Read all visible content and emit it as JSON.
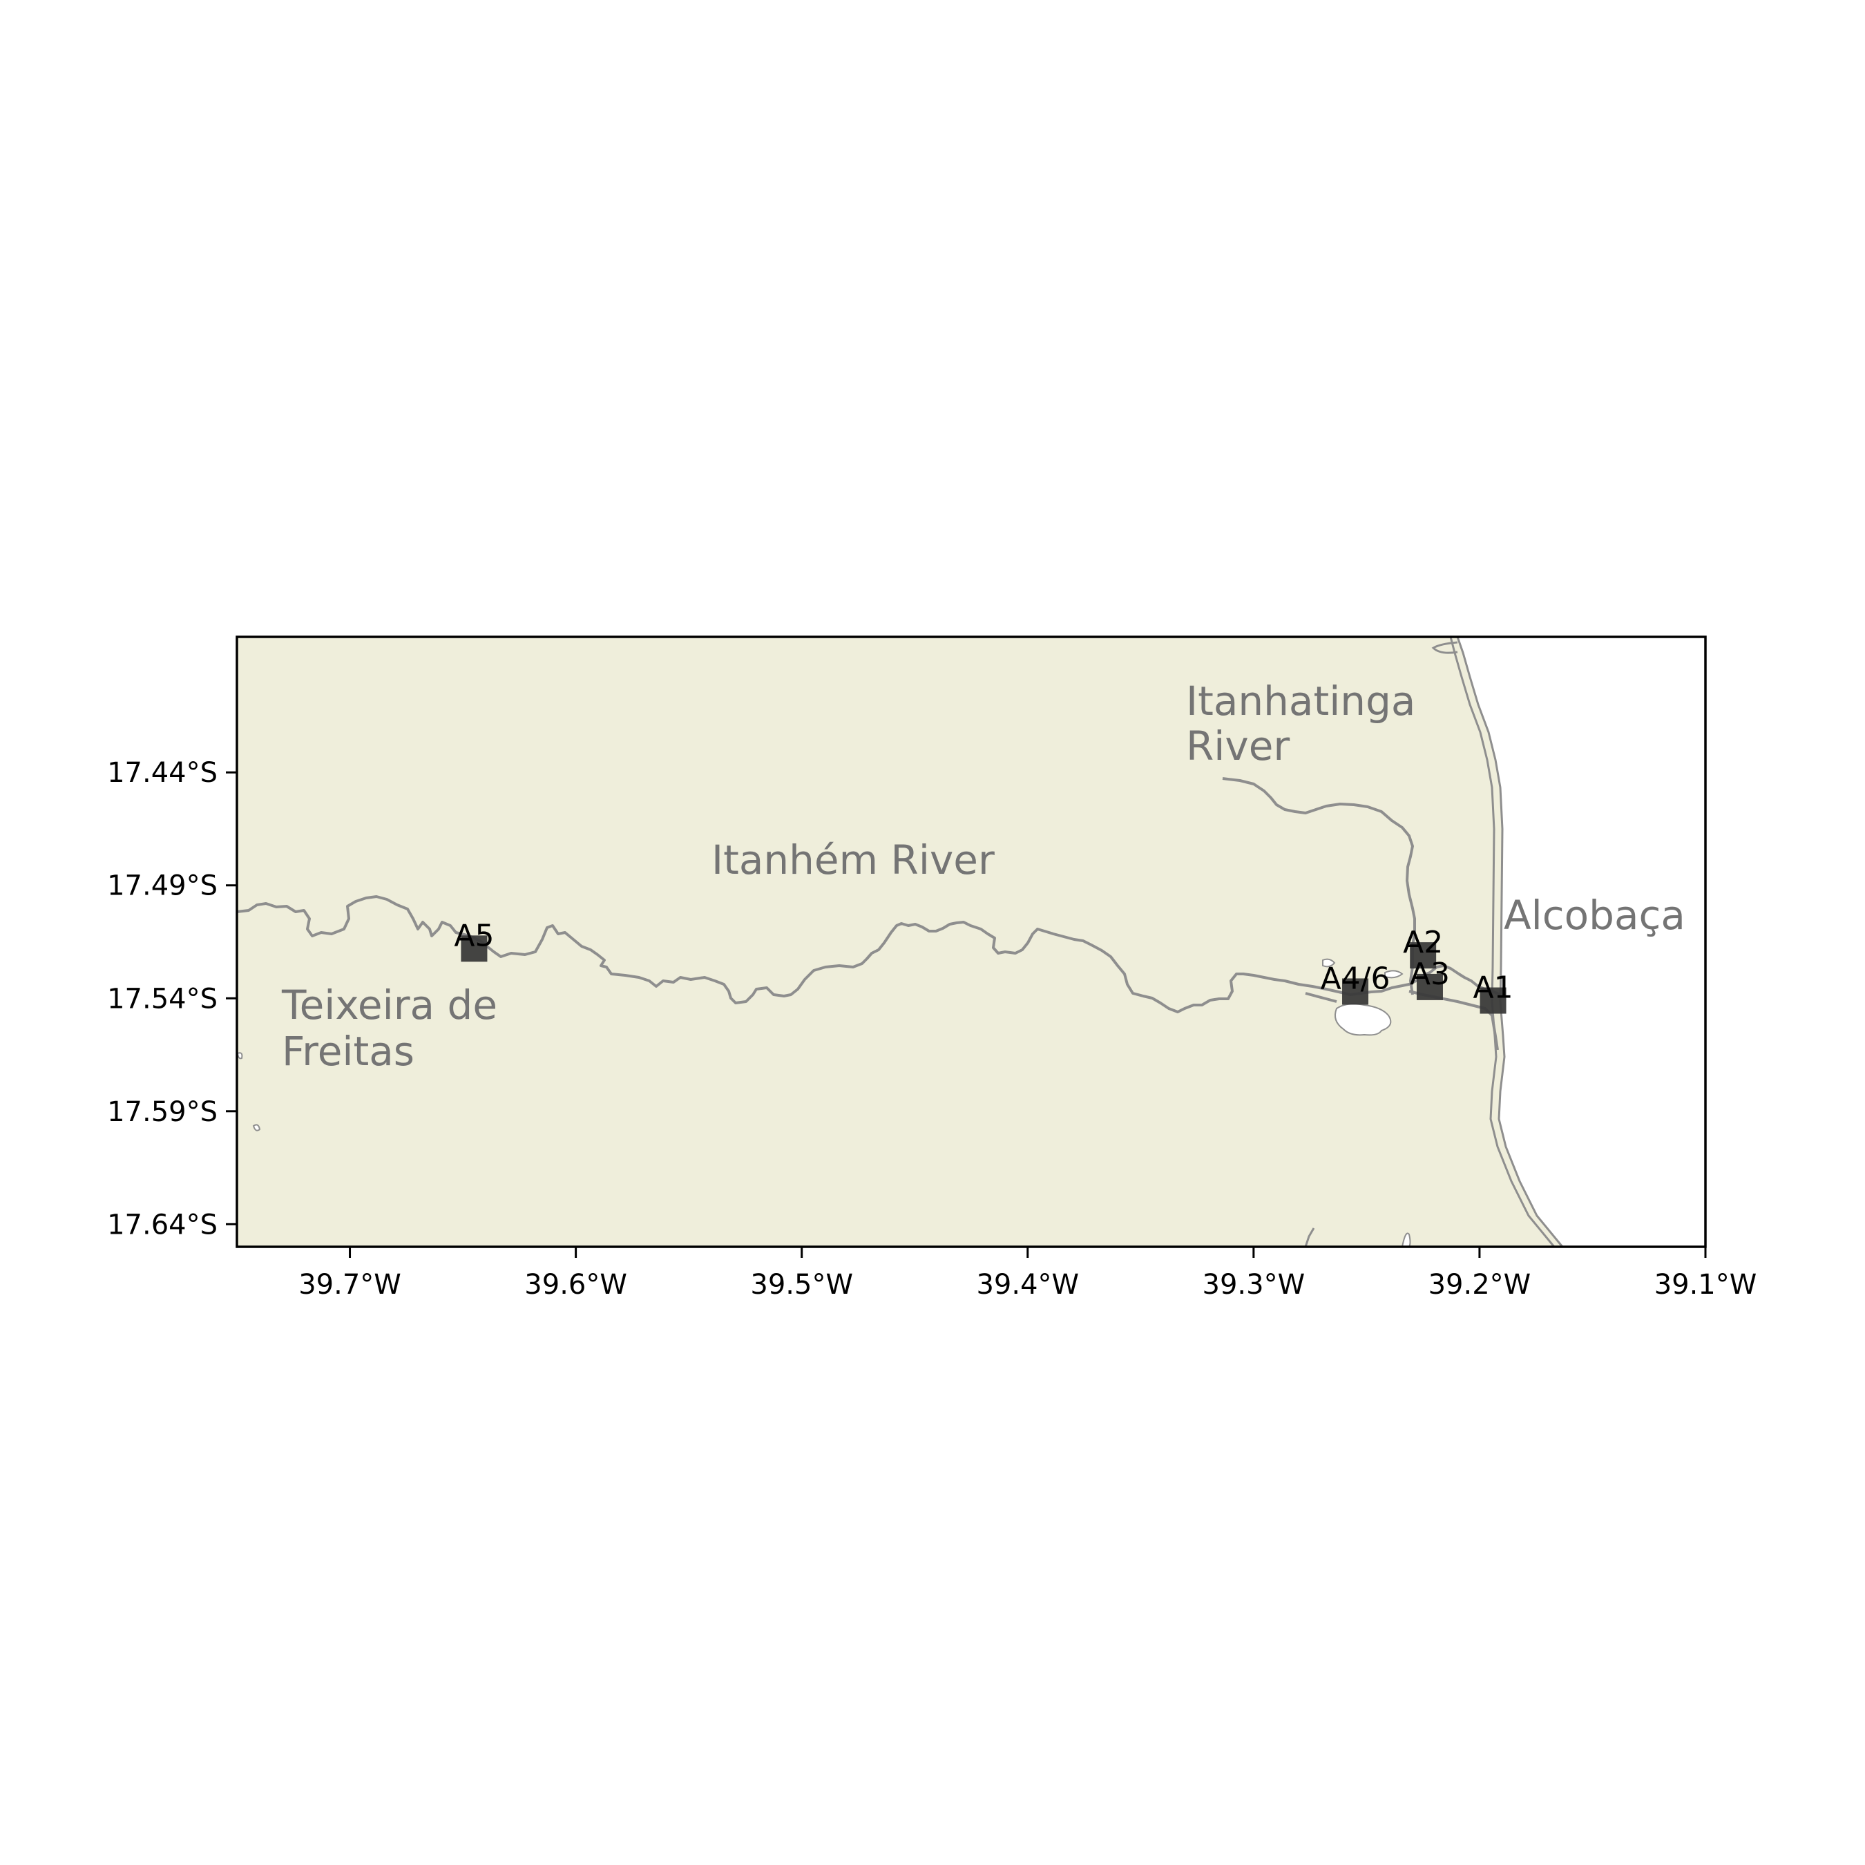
{
  "map": {
    "x_ticks": [
      "39.7°W",
      "39.6°W",
      "39.5°W",
      "39.4°W",
      "39.3°W",
      "39.2°W",
      "39.1°W"
    ],
    "y_ticks": [
      "17.44°S",
      "17.49°S",
      "17.54°S",
      "17.59°S",
      "17.64°S"
    ],
    "x_range": [
      -39.75,
      -39.1
    ],
    "y_range": [
      -17.65,
      -17.38
    ],
    "colors": {
      "land": "#efeedb",
      "water": "#ffffff",
      "river": "#8e8e8e",
      "place_label": "#747474",
      "site_marker": "#3a3a3a"
    },
    "places": {
      "itanhatinga_line1": "Itanhatinga",
      "itanhatinga_line2": "River",
      "itanhem": "Itanhém River",
      "alcobaca": "Alcobaça",
      "teixeira_line1": "Teixeira de",
      "teixeira_line2": "Freitas"
    },
    "sites": [
      {
        "label": "A5",
        "lon": -39.645,
        "lat": -17.518
      },
      {
        "label": "A2",
        "lon": -39.225,
        "lat": -17.521
      },
      {
        "label": "A4/6",
        "lon": -39.255,
        "lat": -17.537
      },
      {
        "label": "A3",
        "lon": -39.222,
        "lat": -17.535
      },
      {
        "label": "A1",
        "lon": -39.194,
        "lat": -17.541
      }
    ]
  }
}
